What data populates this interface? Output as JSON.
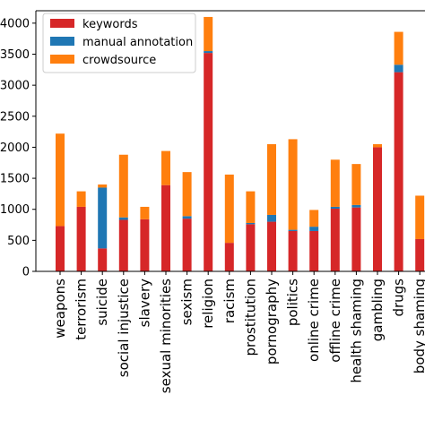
{
  "chart_data": {
    "type": "bar",
    "stacked": true,
    "categories": [
      "weapons",
      "terrorism",
      "suicide",
      "social injustice",
      "slavery",
      "sexual minorities",
      "sexism",
      "religion",
      "racism",
      "prostitution",
      "pornography",
      "politics",
      "online crime",
      "offline crime",
      "health shaming",
      "gambling",
      "drugs",
      "body shaming"
    ],
    "series": [
      {
        "name": "keywords",
        "color": "#d62728",
        "values": [
          730,
          1040,
          370,
          830,
          840,
          1390,
          850,
          3520,
          460,
          760,
          800,
          650,
          650,
          1010,
          1030,
          2000,
          3210,
          520
        ]
      },
      {
        "name": "manual annotation",
        "color": "#1f77b4",
        "values": [
          0,
          0,
          980,
          40,
          0,
          0,
          40,
          30,
          0,
          20,
          110,
          20,
          70,
          30,
          40,
          0,
          120,
          0
        ]
      },
      {
        "name": "crowdsource",
        "color": "#ff7f0e",
        "values": [
          1490,
          250,
          50,
          1010,
          200,
          550,
          710,
          550,
          1100,
          510,
          1140,
          1460,
          270,
          760,
          660,
          50,
          530,
          700
        ]
      }
    ],
    "yticks": [
      "0",
      "500",
      "1000",
      "1500",
      "2000",
      "2500",
      "3000",
      "3500",
      "4000"
    ],
    "ytick_values": [
      0,
      500,
      1000,
      1500,
      2000,
      2500,
      3000,
      3500,
      4000
    ],
    "ylim": [
      0,
      4200
    ],
    "grid": false,
    "legend_placement": "top-left"
  }
}
